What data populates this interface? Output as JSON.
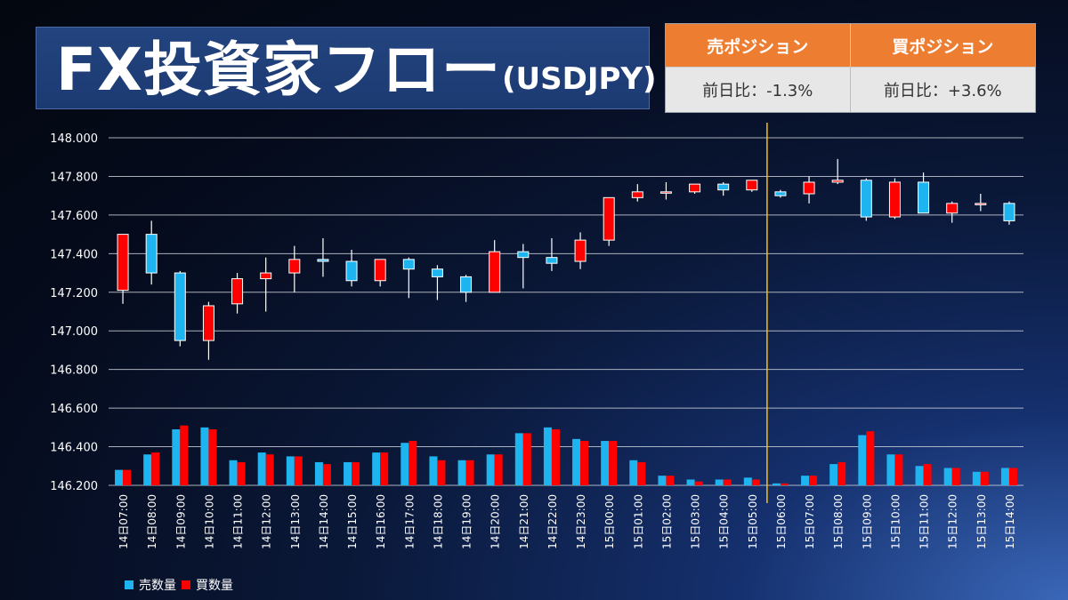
{
  "title": {
    "main": "FX投資家フロー",
    "sub": "(USDJPY)"
  },
  "positions": {
    "sell": {
      "label": "売ポジション",
      "value": "前日比：-1.3%"
    },
    "buy": {
      "label": "買ポジション",
      "value": "前日比：+3.6%"
    }
  },
  "legend": {
    "sell": "売数量",
    "buy": "買数量"
  },
  "colors": {
    "up": "#ff0000",
    "down": "#1eb4f0",
    "sell_bar": "#1eb4f0",
    "buy_bar": "#ff0000",
    "marker": "#ffc000",
    "grid": "#c8ccd4",
    "text": "#ffffff"
  },
  "chart_data": {
    "type": "candlestick+bar",
    "ylim": [
      146.2,
      148.0
    ],
    "yticks": [
      "148.000",
      "147.800",
      "147.600",
      "147.400",
      "147.200",
      "147.000",
      "146.800",
      "146.600",
      "146.400",
      "146.200"
    ],
    "grid": true,
    "legend_position": "bottom-left",
    "marker_after": "15日05:00",
    "categories": [
      "14日07:00",
      "14日08:00",
      "14日09:00",
      "14日10:00",
      "14日11:00",
      "14日12:00",
      "14日13:00",
      "14日14:00",
      "14日15:00",
      "14日16:00",
      "14日17:00",
      "14日18:00",
      "14日19:00",
      "14日20:00",
      "14日21:00",
      "14日22:00",
      "14日23:00",
      "15日00:00",
      "15日01:00",
      "15日02:00",
      "15日03:00",
      "15日04:00",
      "15日05:00",
      "15日06:00",
      "15日07:00",
      "15日08:00",
      "15日09:00",
      "15日10:00",
      "15日11:00",
      "15日12:00",
      "15日13:00",
      "15日14:00"
    ],
    "candles": [
      {
        "open": 147.21,
        "high": 147.5,
        "low": 147.14,
        "close": 147.5
      },
      {
        "open": 147.5,
        "high": 147.57,
        "low": 147.24,
        "close": 147.3
      },
      {
        "open": 147.3,
        "high": 147.31,
        "low": 146.92,
        "close": 146.95
      },
      {
        "open": 146.95,
        "high": 147.15,
        "low": 146.85,
        "close": 147.13
      },
      {
        "open": 147.14,
        "high": 147.3,
        "low": 147.09,
        "close": 147.27
      },
      {
        "open": 147.27,
        "high": 147.38,
        "low": 147.1,
        "close": 147.3
      },
      {
        "open": 147.3,
        "high": 147.44,
        "low": 147.2,
        "close": 147.37
      },
      {
        "open": 147.37,
        "high": 147.48,
        "low": 147.28,
        "close": 147.36
      },
      {
        "open": 147.36,
        "high": 147.42,
        "low": 147.23,
        "close": 147.26
      },
      {
        "open": 147.26,
        "high": 147.37,
        "low": 147.23,
        "close": 147.37
      },
      {
        "open": 147.37,
        "high": 147.38,
        "low": 147.17,
        "close": 147.32
      },
      {
        "open": 147.32,
        "high": 147.34,
        "low": 147.16,
        "close": 147.28
      },
      {
        "open": 147.28,
        "high": 147.29,
        "low": 147.15,
        "close": 147.2
      },
      {
        "open": 147.2,
        "high": 147.47,
        "low": 147.2,
        "close": 147.41
      },
      {
        "open": 147.41,
        "high": 147.45,
        "low": 147.22,
        "close": 147.38
      },
      {
        "open": 147.38,
        "high": 147.48,
        "low": 147.31,
        "close": 147.35
      },
      {
        "open": 147.36,
        "high": 147.51,
        "low": 147.32,
        "close": 147.47
      },
      {
        "open": 147.47,
        "high": 147.69,
        "low": 147.44,
        "close": 147.69
      },
      {
        "open": 147.69,
        "high": 147.76,
        "low": 147.67,
        "close": 147.72
      },
      {
        "open": 147.72,
        "high": 147.77,
        "low": 147.68,
        "close": 147.72
      },
      {
        "open": 147.72,
        "high": 147.76,
        "low": 147.71,
        "close": 147.76
      },
      {
        "open": 147.76,
        "high": 147.77,
        "low": 147.7,
        "close": 147.73
      },
      {
        "open": 147.73,
        "high": 147.78,
        "low": 147.72,
        "close": 147.78
      },
      {
        "open": 147.72,
        "high": 147.73,
        "low": 147.69,
        "close": 147.7
      },
      {
        "open": 147.71,
        "high": 147.8,
        "low": 147.66,
        "close": 147.77
      },
      {
        "open": 147.77,
        "high": 147.89,
        "low": 147.76,
        "close": 147.78
      },
      {
        "open": 147.78,
        "high": 147.79,
        "low": 147.57,
        "close": 147.59
      },
      {
        "open": 147.59,
        "high": 147.79,
        "low": 147.58,
        "close": 147.77
      },
      {
        "open": 147.77,
        "high": 147.82,
        "low": 147.61,
        "close": 147.61
      },
      {
        "open": 147.61,
        "high": 147.67,
        "low": 147.56,
        "close": 147.66
      },
      {
        "open": 147.66,
        "high": 147.71,
        "low": 147.62,
        "close": 147.66
      },
      {
        "open": 147.66,
        "high": 147.67,
        "low": 147.55,
        "close": 147.57
      }
    ],
    "series": [
      {
        "name": "売数量",
        "values": [
          146.28,
          146.36,
          146.49,
          146.5,
          146.33,
          146.37,
          146.35,
          146.32,
          146.32,
          146.37,
          146.42,
          146.35,
          146.33,
          146.36,
          146.47,
          146.5,
          146.44,
          146.43,
          146.33,
          146.25,
          146.23,
          146.23,
          146.24,
          146.21,
          146.25,
          146.31,
          146.46,
          146.36,
          146.3,
          146.29,
          146.27,
          146.29
        ]
      },
      {
        "name": "買数量",
        "values": [
          146.28,
          146.37,
          146.51,
          146.49,
          146.32,
          146.36,
          146.35,
          146.31,
          146.32,
          146.37,
          146.43,
          146.33,
          146.33,
          146.36,
          146.47,
          146.49,
          146.43,
          146.43,
          146.32,
          146.25,
          146.22,
          146.23,
          146.23,
          146.21,
          146.25,
          146.32,
          146.48,
          146.36,
          146.31,
          146.29,
          146.27,
          146.29
        ]
      }
    ]
  }
}
